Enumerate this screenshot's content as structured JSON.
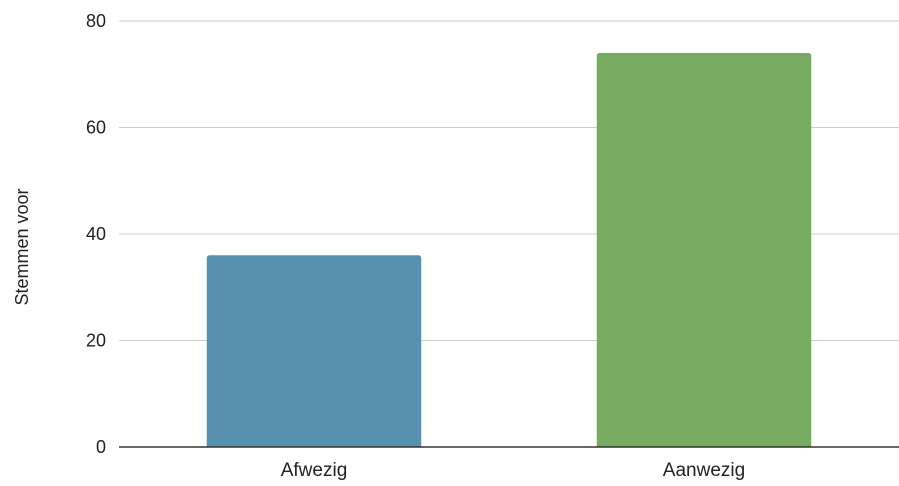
{
  "chart_data": {
    "type": "bar",
    "categories": [
      "Afwezig",
      "Aanwezig"
    ],
    "values": [
      36,
      74
    ],
    "colors": [
      "#5890af",
      "#76ab61"
    ],
    "title": "",
    "xlabel": "",
    "ylabel": "Stemmen voor",
    "ylim": [
      0,
      80
    ],
    "yticks": [
      0,
      20,
      40,
      60,
      80
    ],
    "grid": true,
    "legend": "none"
  }
}
